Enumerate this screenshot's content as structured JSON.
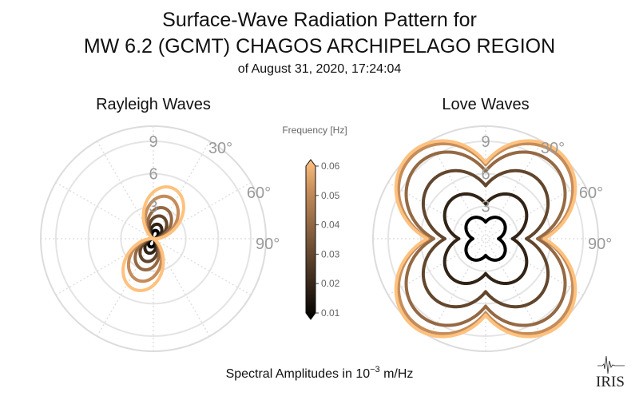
{
  "title": {
    "line1": "Surface-Wave Radiation Pattern for",
    "line2": "MW 6.2 (GCMT) CHAGOS ARCHIPELAGO REGION",
    "line3": "of August 31, 2020, 17:24:04"
  },
  "footer": {
    "label_prefix": "Spectral Amplitudes in ",
    "label_base": "10",
    "label_exp": "−3",
    "label_suffix": " m/Hz"
  },
  "logo_text": "IRIS",
  "colorbar": {
    "title": "Frequency [Hz]",
    "ticks": [
      "0.01",
      "0.02",
      "0.03",
      "0.04",
      "0.05",
      "0.06"
    ],
    "colormap": "copper",
    "colors": [
      "#000000",
      "#c58c59",
      "#ffc17e"
    ]
  },
  "chart_data": [
    {
      "type": "polar-line",
      "title": "Rayleigh Waves",
      "radial_ticks": [
        "3",
        "6",
        "9"
      ],
      "radial_range": [
        0,
        10.4
      ],
      "angle_labels": [
        "30°",
        "60°",
        "90°"
      ],
      "grid": true,
      "pattern": "two-lobe",
      "lobe_azimuths_deg": [
        20,
        200
      ],
      "series": [
        {
          "frequency": 0.01,
          "amplitude": 0.8
        },
        {
          "frequency": 0.02,
          "amplitude": 1.4
        },
        {
          "frequency": 0.03,
          "amplitude": 2.2
        },
        {
          "frequency": 0.04,
          "amplitude": 3.0
        },
        {
          "frequency": 0.05,
          "amplitude": 4.1
        },
        {
          "frequency": 0.06,
          "amplitude": 5.0
        }
      ]
    },
    {
      "type": "polar-line",
      "title": "Love Waves",
      "radial_ticks": [
        "3",
        "6",
        "9"
      ],
      "radial_range": [
        0,
        10.4
      ],
      "angle_labels": [
        "30°",
        "60°",
        "90°"
      ],
      "grid": true,
      "pattern": "four-lobe",
      "lobe_azimuths_deg": [
        40,
        140,
        220,
        320
      ],
      "series": [
        {
          "frequency": 0.01,
          "amplitude": 2.3
        },
        {
          "frequency": 0.02,
          "amplitude": 4.8
        },
        {
          "frequency": 0.03,
          "amplitude": 7.3
        },
        {
          "frequency": 0.04,
          "amplitude": 9.3
        },
        {
          "frequency": 0.05,
          "amplitude": 10.2
        },
        {
          "frequency": 0.06,
          "amplitude": 10.5
        }
      ]
    }
  ]
}
